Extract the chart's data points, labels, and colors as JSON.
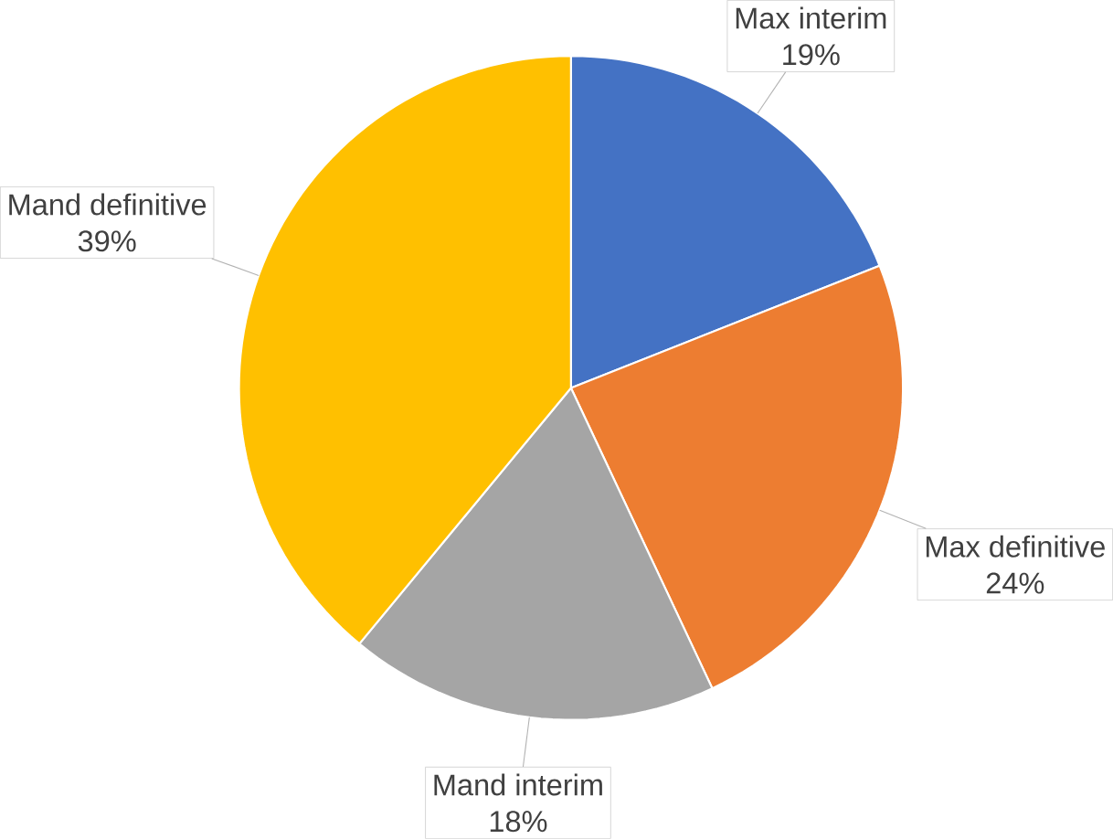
{
  "chart_data": {
    "type": "pie",
    "categories": [
      "Max interim",
      "Max definitive",
      "Mand interim",
      "Mand definitive"
    ],
    "values": [
      19,
      24,
      18,
      39
    ],
    "value_labels": [
      "19%",
      "24%",
      "18%",
      "39%"
    ],
    "colors": [
      "#4472c4",
      "#ed7d31",
      "#a5a5a5",
      "#ffc000"
    ]
  }
}
